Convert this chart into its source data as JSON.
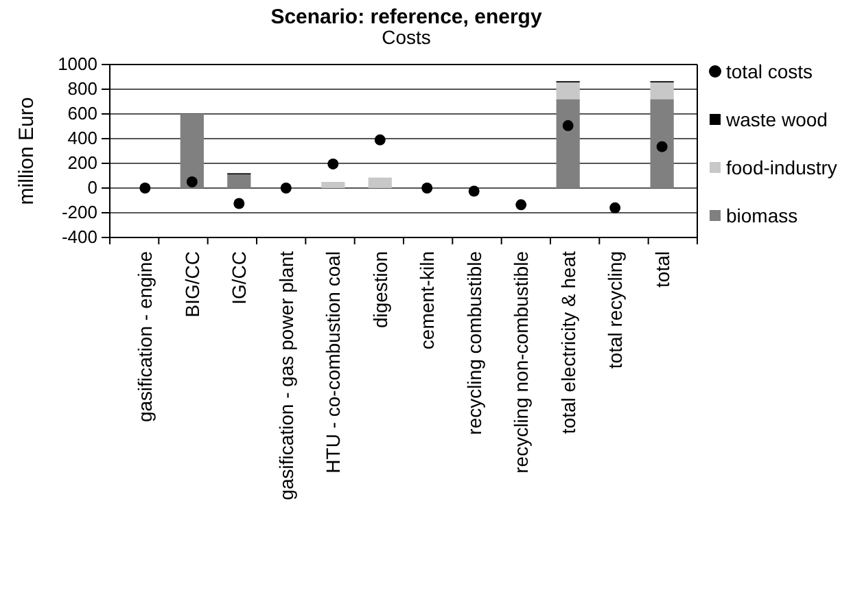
{
  "chart_data": {
    "type": "bar",
    "title": "Scenario: reference, energy",
    "subtitle": "Costs",
    "ylabel": "million Euro",
    "categories": [
      "gasification - engine",
      "BIG/CC",
      "IG/CC",
      "gasification - gas power plant",
      "HTU - co-combustion coal",
      "digestion",
      "cement-kiln",
      "recycling combustible",
      "recycling non-combustible",
      "total electricity & heat",
      "total recycling",
      "total"
    ],
    "stacked": true,
    "series": [
      {
        "name": "biomass",
        "color": "#808080",
        "values": [
          0,
          600,
          110,
          0,
          0,
          0,
          0,
          0,
          0,
          720,
          0,
          720
        ]
      },
      {
        "name": "food-industry",
        "color": "#c8c8c8",
        "values": [
          0,
          0,
          0,
          0,
          50,
          85,
          0,
          0,
          0,
          135,
          0,
          135
        ]
      },
      {
        "name": "waste wood",
        "color": "#000000",
        "values": [
          0,
          0,
          10,
          0,
          0,
          0,
          0,
          0,
          0,
          10,
          0,
          10
        ]
      },
      {
        "name": "total costs",
        "type": "scatter",
        "color": "#000000",
        "marker": "circle",
        "values": [
          0,
          50,
          -125,
          0,
          195,
          390,
          0,
          -25,
          -135,
          505,
          -160,
          335
        ]
      }
    ],
    "ylim": [
      -400,
      1000
    ],
    "yticks": [
      -400,
      -200,
      0,
      200,
      400,
      600,
      800,
      1000
    ],
    "grid": "y",
    "legend": "right"
  }
}
